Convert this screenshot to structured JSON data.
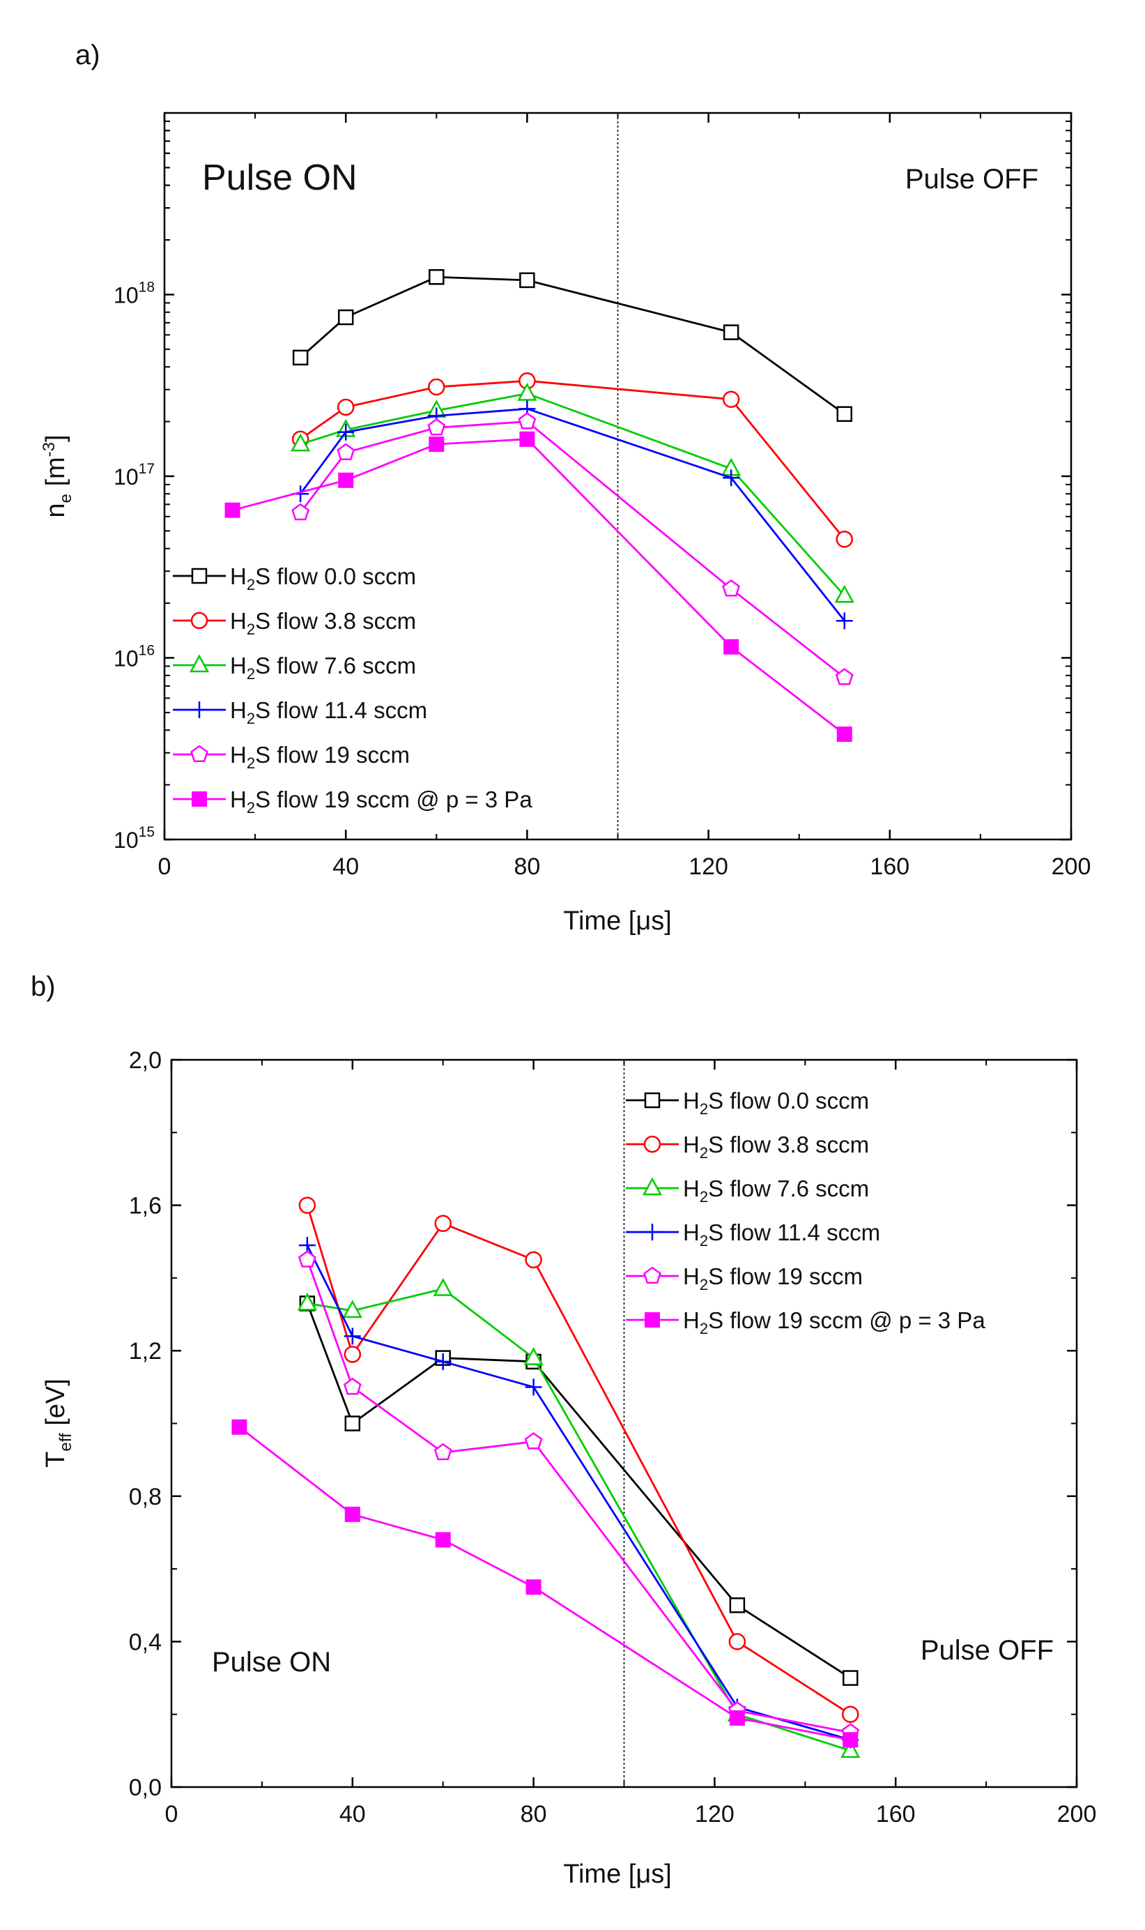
{
  "chart_data": [
    {
      "panel_label": "a)",
      "type": "line",
      "xlabel": "Time [μs]",
      "ylabel_main": "n",
      "ylabel_sub": "e",
      "ylabel_unit": "[m",
      "ylabel_unit_sup": "-3",
      "ylabel_unit_end": "]",
      "y_scale": "log",
      "xlim": [
        0,
        200
      ],
      "ylim": [
        1000000000000000.0,
        1e+19
      ],
      "x_ticks": [
        0,
        40,
        80,
        120,
        160,
        200
      ],
      "x_tick_labels": [
        "0",
        "40",
        "80",
        "120",
        "160",
        "200"
      ],
      "y_ticks": [
        1000000000000000.0,
        1e+16,
        1e+17,
        1e+18
      ],
      "y_tick_bases": [
        "10",
        "10",
        "10",
        "10"
      ],
      "y_tick_exps": [
        "15",
        "16",
        "17",
        "18"
      ],
      "vline_x": 100,
      "annotations": [
        "Pulse ON",
        "Pulse OFF"
      ],
      "legend_position": "lower-left",
      "series": [
        {
          "name_pre": "H",
          "name_sub": "2",
          "name_post": "S flow 0.0 sccm",
          "color": "#000000",
          "marker": "square-open",
          "x": [
            30,
            40,
            60,
            80,
            125,
            150
          ],
          "y": [
            4.5e+17,
            7.5e+17,
            1.25e+18,
            1.2e+18,
            6.2e+17,
            2.2e+17
          ]
        },
        {
          "name_pre": "H",
          "name_sub": "2",
          "name_post": "S flow 3.8 sccm",
          "color": "#ff0000",
          "marker": "circle-open",
          "x": [
            30,
            40,
            60,
            80,
            125,
            150
          ],
          "y": [
            1.6e+17,
            2.4e+17,
            3.1e+17,
            3.35e+17,
            2.65e+17,
            4.5e+16
          ]
        },
        {
          "name_pre": "H",
          "name_sub": "2",
          "name_post": "S flow 7.6 sccm",
          "color": "#00cc00",
          "marker": "triangle-open",
          "x": [
            30,
            40,
            60,
            80,
            125,
            150
          ],
          "y": [
            1.5e+17,
            1.8e+17,
            2.3e+17,
            2.85e+17,
            1.1e+17,
            2.2e+16
          ]
        },
        {
          "name_pre": "H",
          "name_sub": "2",
          "name_post": "S flow 11.4 sccm",
          "color": "#0000ff",
          "marker": "plus",
          "x": [
            30,
            40,
            60,
            80,
            125,
            150
          ],
          "y": [
            8e+16,
            1.75e+17,
            2.15e+17,
            2.35e+17,
            9.8e+16,
            1.6e+16
          ]
        },
        {
          "name_pre": "H",
          "name_sub": "2",
          "name_post": "S flow 19 sccm",
          "color": "#ff00ff",
          "marker": "pentagon-open",
          "x": [
            30,
            40,
            60,
            80,
            125,
            150
          ],
          "y": [
            6.3e+16,
            1.35e+17,
            1.85e+17,
            2e+17,
            2.4e+16,
            7800000000000000.0
          ]
        },
        {
          "name_pre": "H",
          "name_sub": "2",
          "name_post": "S flow 19 sccm @ p = 3 Pa",
          "color": "#ff00ff",
          "marker": "square-filled",
          "x": [
            15,
            40,
            60,
            80,
            125,
            150
          ],
          "y": [
            6.5e+16,
            9.5e+16,
            1.5e+17,
            1.6e+17,
            1.15e+16,
            3800000000000000.0
          ]
        }
      ]
    },
    {
      "panel_label": "b)",
      "type": "line",
      "xlabel": "Time [μs]",
      "ylabel_main": "T",
      "ylabel_sub": "eff",
      "ylabel_unit": "[eV]",
      "y_scale": "linear",
      "xlim": [
        0,
        200
      ],
      "ylim": [
        0,
        2.0
      ],
      "x_ticks": [
        0,
        40,
        80,
        120,
        160,
        200
      ],
      "x_tick_labels": [
        "0",
        "40",
        "80",
        "120",
        "160",
        "200"
      ],
      "y_ticks": [
        0,
        0.4,
        0.8,
        1.2,
        1.6,
        2.0
      ],
      "y_tick_labels": [
        "0,0",
        "0,4",
        "0,8",
        "1,2",
        "1,6",
        "2,0"
      ],
      "vline_x": 100,
      "annotations": [
        "Pulse ON",
        "Pulse OFF"
      ],
      "legend_position": "top-right",
      "series": [
        {
          "name_pre": "H",
          "name_sub": "2",
          "name_post": "S flow 0.0 sccm",
          "color": "#000000",
          "marker": "square-open",
          "x": [
            30,
            40,
            60,
            80,
            125,
            150
          ],
          "y": [
            1.33,
            1.0,
            1.18,
            1.17,
            0.5,
            0.3
          ]
        },
        {
          "name_pre": "H",
          "name_sub": "2",
          "name_post": "S flow 3.8 sccm",
          "color": "#ff0000",
          "marker": "circle-open",
          "x": [
            30,
            40,
            60,
            80,
            125,
            150
          ],
          "y": [
            1.6,
            1.19,
            1.55,
            1.45,
            0.4,
            0.2
          ]
        },
        {
          "name_pre": "H",
          "name_sub": "2",
          "name_post": "S flow 7.6 sccm",
          "color": "#00cc00",
          "marker": "triangle-open",
          "x": [
            30,
            40,
            60,
            80,
            125,
            150
          ],
          "y": [
            1.33,
            1.31,
            1.37,
            1.18,
            0.2,
            0.1
          ]
        },
        {
          "name_pre": "H",
          "name_sub": "2",
          "name_post": "S flow 11.4 sccm",
          "color": "#0000ff",
          "marker": "plus",
          "x": [
            30,
            40,
            60,
            80,
            125,
            150
          ],
          "y": [
            1.49,
            1.24,
            1.17,
            1.1,
            0.22,
            0.13
          ]
        },
        {
          "name_pre": "H",
          "name_sub": "2",
          "name_post": "S flow 19 sccm",
          "color": "#ff00ff",
          "marker": "pentagon-open",
          "x": [
            30,
            40,
            60,
            80,
            125,
            150
          ],
          "y": [
            1.45,
            1.1,
            0.92,
            0.95,
            0.21,
            0.15
          ]
        },
        {
          "name_pre": "H",
          "name_sub": "2",
          "name_post": "S flow 19 sccm @ p = 3 Pa",
          "color": "#ff00ff",
          "marker": "square-filled",
          "x": [
            15,
            40,
            60,
            80,
            125,
            150
          ],
          "y": [
            0.99,
            0.75,
            0.68,
            0.55,
            0.19,
            0.13
          ]
        }
      ]
    }
  ]
}
